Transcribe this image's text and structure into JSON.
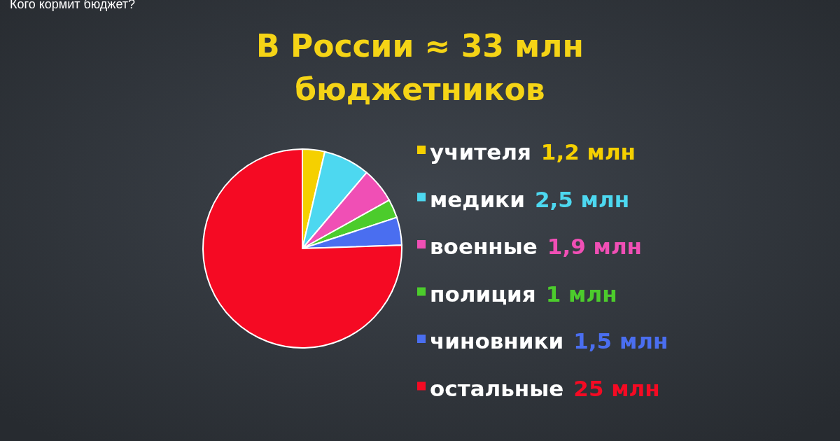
{
  "chart_data": {
    "type": "pie",
    "title": "В России ≈ 33 млн бюджетников",
    "annotations": [
      "Кого кормит бюджет?"
    ],
    "categories": [
      "учителя",
      "медики",
      "военные",
      "полиция",
      "чиновники",
      "остальные"
    ],
    "values": [
      1.2,
      2.5,
      1.9,
      1,
      1.5,
      25
    ],
    "colors": [
      "#f5d000",
      "#4dd8f0",
      "#f04fb5",
      "#4ccc2c",
      "#4a6ef0",
      "#f50a23"
    ],
    "value_labels": [
      "1,2 млн",
      "2,5 млн",
      "1,9 млн",
      "1 млн",
      "1,5 млн",
      "25 млн"
    ],
    "legend": "right"
  }
}
